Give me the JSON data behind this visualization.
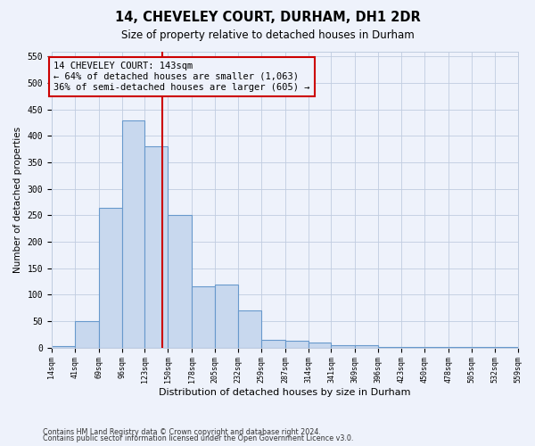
{
  "title": "14, CHEVELEY COURT, DURHAM, DH1 2DR",
  "subtitle": "Size of property relative to detached houses in Durham",
  "xlabel": "Distribution of detached houses by size in Durham",
  "ylabel": "Number of detached properties",
  "annotation_text": "14 CHEVELEY COURT: 143sqm\n← 64% of detached houses are smaller (1,063)\n36% of semi-detached houses are larger (605) →",
  "property_size": 143,
  "footnote1": "Contains HM Land Registry data © Crown copyright and database right 2024.",
  "footnote2": "Contains public sector information licensed under the Open Government Licence v3.0.",
  "bin_edges": [
    14,
    41,
    69,
    96,
    123,
    150,
    178,
    205,
    232,
    259,
    287,
    314,
    341,
    369,
    396,
    423,
    450,
    478,
    505,
    532,
    559
  ],
  "bar_heights": [
    3,
    50,
    265,
    430,
    380,
    250,
    115,
    120,
    70,
    15,
    13,
    10,
    5,
    4,
    2,
    1,
    1,
    1,
    1,
    1
  ],
  "bar_color": "#c8d8ee",
  "bar_edge_color": "#6899cc",
  "marker_color": "#cc0000",
  "bg_color": "#eef2fb",
  "grid_color": "#c0cce0",
  "ylim": [
    0,
    560
  ],
  "yticks": [
    0,
    50,
    100,
    150,
    200,
    250,
    300,
    350,
    400,
    450,
    500,
    550
  ]
}
